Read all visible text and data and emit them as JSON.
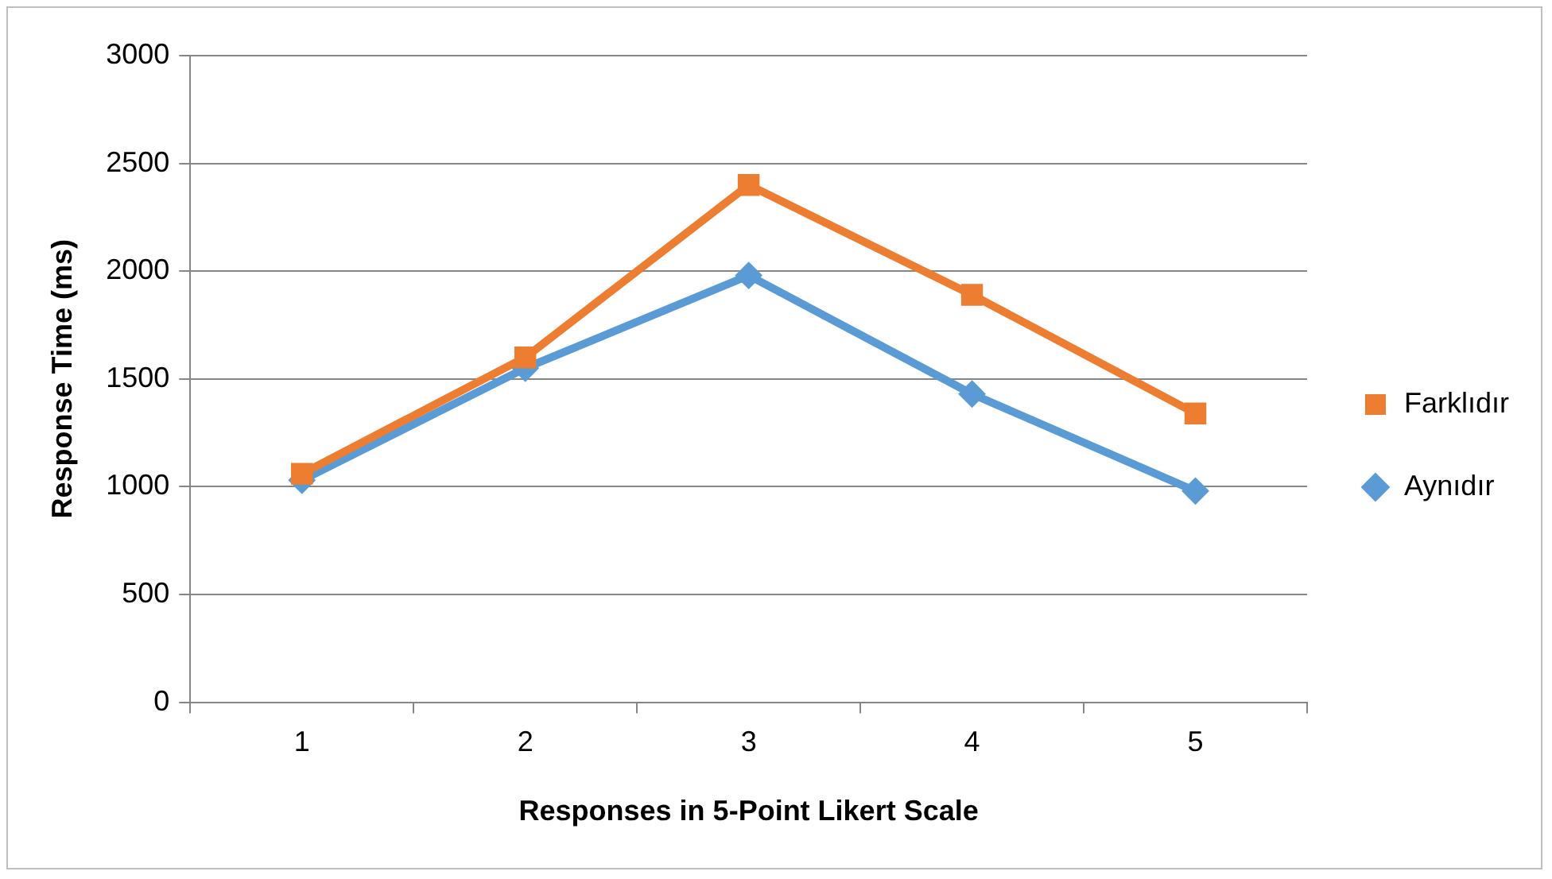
{
  "chart_data": {
    "type": "line",
    "xlabel": "Responses in 5-Point Likert Scale",
    "ylabel": "Response Time (ms)",
    "categories": [
      "1",
      "2",
      "3",
      "4",
      "5"
    ],
    "series": [
      {
        "name": "Aynıdır",
        "color": "#5b9bd5",
        "marker": "diamond",
        "values": [
          1030,
          1550,
          1980,
          1430,
          980
        ]
      },
      {
        "name": "Farklıdır",
        "color": "#ed7d31",
        "marker": "square",
        "values": [
          1060,
          1600,
          2400,
          1890,
          1340
        ]
      }
    ],
    "ylim": [
      0,
      3000
    ],
    "yticks": [
      0,
      500,
      1000,
      1500,
      2000,
      2500,
      3000
    ],
    "grid": "y",
    "legend": "right",
    "line_style": "solid"
  }
}
